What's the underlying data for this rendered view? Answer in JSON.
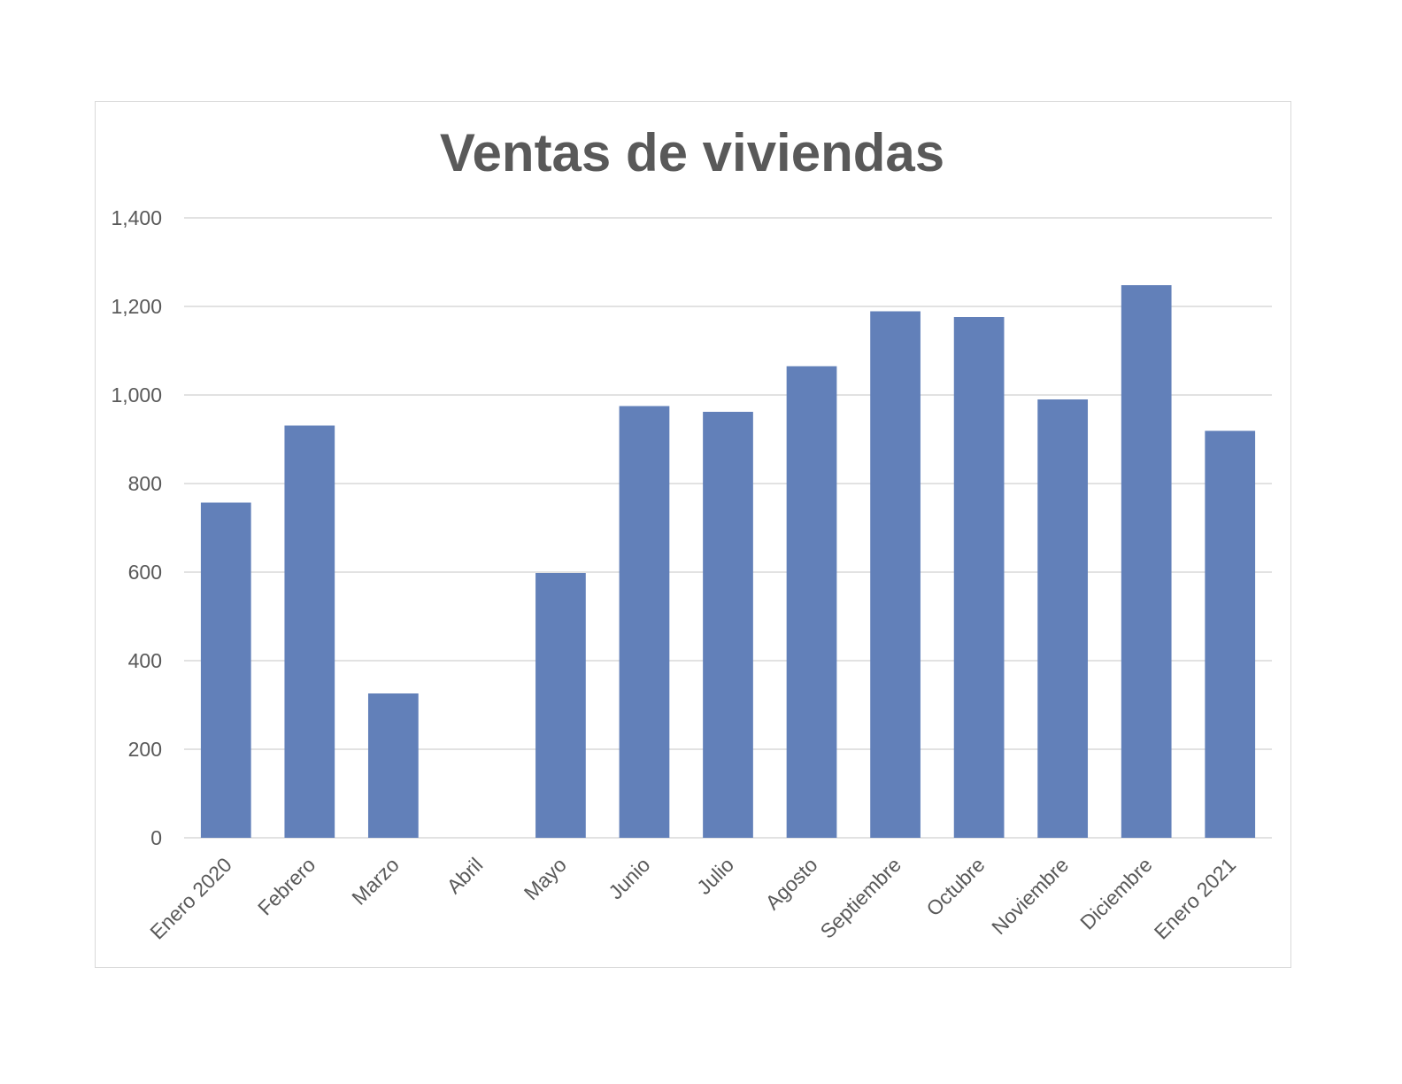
{
  "chart_data": {
    "type": "bar",
    "title": "Ventas de viviendas",
    "xlabel": "",
    "ylabel": "",
    "categories": [
      "Enero 2020",
      "Febrero",
      "Marzo",
      "Abril",
      "Mayo",
      "Junio",
      "Julio",
      "Agosto",
      "Septiembre",
      "Octubre",
      "Noviembre",
      "Diciembre",
      "Enero 2021"
    ],
    "values": [
      757,
      931,
      326,
      0,
      598,
      975,
      962,
      1065,
      1189,
      1176,
      990,
      1248,
      919
    ],
    "ylim": [
      0,
      1400
    ],
    "yticks": [
      0,
      200,
      400,
      600,
      800,
      1000,
      1200,
      1400
    ],
    "ytick_labels": [
      "0",
      "200",
      "400",
      "600",
      "800",
      "1,000",
      "1,200",
      "1,400"
    ],
    "grid": true,
    "legend": "none",
    "bar_color": "#6280b9",
    "grid_color": "#d9d9d9",
    "text_color": "#595959"
  }
}
